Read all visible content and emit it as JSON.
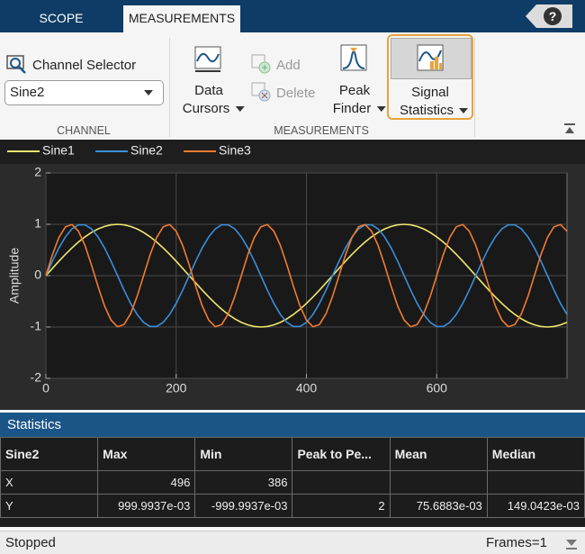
{
  "tabs": [
    "SCOPE",
    "MEASUREMENTS"
  ],
  "help": "?",
  "ribbon": {
    "channel_selector": "Channel Selector",
    "channel": "Sine2",
    "channel_section": "CHANNEL",
    "data_cursors": [
      "Data",
      "Cursors"
    ],
    "add": "Add",
    "delete": "Delete",
    "peak_finder": [
      "Peak",
      "Finder"
    ],
    "signal_statistics": [
      "Signal",
      "Statistics"
    ],
    "measurements_section": "MEASUREMENTS"
  },
  "chart_data": {
    "type": "line",
    "ylabel": "Amplitude",
    "x": [
      0,
      10,
      20,
      30,
      40,
      50,
      60,
      70,
      80,
      90,
      100,
      110,
      120,
      130,
      140,
      150,
      160,
      170,
      180,
      190,
      200,
      210,
      220,
      230,
      240,
      250,
      260,
      270,
      280,
      290,
      300,
      310,
      320,
      330,
      340,
      350,
      360,
      370,
      380,
      390,
      400,
      410,
      420,
      430,
      440,
      450,
      460,
      470,
      480,
      490,
      500,
      510,
      520,
      530,
      540,
      550,
      560,
      570,
      580,
      590,
      600,
      610,
      620,
      630,
      640,
      650,
      660,
      670,
      680,
      690,
      700,
      710,
      720,
      730,
      740,
      750,
      760,
      770,
      780,
      790,
      800
    ],
    "series": [
      {
        "name": "Sine1",
        "color": "#f2e66e",
        "values": [
          0,
          0.142,
          0.282,
          0.415,
          0.541,
          0.655,
          0.756,
          0.841,
          0.91,
          0.959,
          0.99,
          1,
          0.99,
          0.959,
          0.91,
          0.841,
          0.756,
          0.655,
          0.541,
          0.415,
          0.282,
          0.142,
          0,
          -0.142,
          -0.282,
          -0.415,
          -0.541,
          -0.655,
          -0.756,
          -0.841,
          -0.91,
          -0.959,
          -0.99,
          -1,
          -0.99,
          -0.959,
          -0.91,
          -0.841,
          -0.756,
          -0.655,
          -0.541,
          -0.415,
          -0.282,
          -0.142,
          0,
          0.142,
          0.282,
          0.415,
          0.541,
          0.655,
          0.756,
          0.841,
          0.91,
          0.959,
          0.99,
          1,
          0.99,
          0.959,
          0.91,
          0.841,
          0.756,
          0.655,
          0.541,
          0.415,
          0.282,
          0.142,
          0,
          -0.142,
          -0.282,
          -0.415,
          -0.541,
          -0.655,
          -0.756,
          -0.841,
          -0.91,
          -0.959,
          -0.99,
          -1,
          -0.99,
          -0.959,
          -0.91
        ]
      },
      {
        "name": "Sine2",
        "color": "#3b8fdb",
        "values": [
          0,
          0.282,
          0.541,
          0.756,
          0.91,
          0.99,
          0.99,
          0.91,
          0.756,
          0.541,
          0.282,
          0,
          -0.282,
          -0.541,
          -0.756,
          -0.91,
          -0.99,
          -0.99,
          -0.91,
          -0.756,
          -0.541,
          -0.282,
          0,
          0.282,
          0.541,
          0.756,
          0.91,
          0.99,
          0.99,
          0.91,
          0.756,
          0.541,
          0.282,
          0,
          -0.282,
          -0.541,
          -0.756,
          -0.91,
          -0.99,
          -0.99,
          -0.91,
          -0.756,
          -0.541,
          -0.282,
          0,
          0.282,
          0.541,
          0.756,
          0.91,
          0.99,
          0.99,
          0.91,
          0.756,
          0.541,
          0.282,
          0,
          -0.282,
          -0.541,
          -0.756,
          -0.91,
          -0.99,
          -0.99,
          -0.91,
          -0.756,
          -0.541,
          -0.282,
          0,
          0.282,
          0.541,
          0.756,
          0.91,
          0.99,
          0.99,
          0.91,
          0.756,
          0.541,
          0.282,
          0,
          -0.282,
          -0.541,
          -0.756
        ]
      },
      {
        "name": "Sine3",
        "color": "#f07b32",
        "values": [
          0,
          0.407,
          0.743,
          0.951,
          0.995,
          0.866,
          0.588,
          0.208,
          -0.208,
          -0.588,
          -0.866,
          -0.995,
          -0.951,
          -0.743,
          -0.407,
          0,
          0.407,
          0.743,
          0.951,
          0.995,
          0.866,
          0.588,
          0.208,
          -0.208,
          -0.588,
          -0.866,
          -0.995,
          -0.951,
          -0.743,
          -0.407,
          0,
          0.407,
          0.743,
          0.951,
          0.995,
          0.866,
          0.588,
          0.208,
          -0.208,
          -0.588,
          -0.866,
          -0.995,
          -0.951,
          -0.743,
          -0.407,
          0,
          0.407,
          0.743,
          0.951,
          0.995,
          0.866,
          0.588,
          0.208,
          -0.208,
          -0.588,
          -0.866,
          -0.995,
          -0.951,
          -0.743,
          -0.407,
          0,
          0.407,
          0.743,
          0.951,
          0.995,
          0.866,
          0.588,
          0.208,
          -0.208,
          -0.588,
          -0.866,
          -0.995,
          -0.951,
          -0.743,
          -0.407,
          0,
          0.407,
          0.743,
          0.951,
          0.995,
          0.866
        ]
      }
    ],
    "xlim": [
      0,
      800
    ],
    "ylim": [
      -2,
      2
    ],
    "xticks": [
      0,
      200,
      400,
      600
    ],
    "yticks": [
      -2,
      -1,
      0,
      1,
      2
    ],
    "grid": true,
    "legend": "top"
  },
  "statistics": {
    "title": "Statistics",
    "columns": [
      "Sine2",
      "Max",
      "Min",
      "Peak to Pe...",
      "Mean",
      "Median"
    ],
    "rows": [
      [
        "X",
        "496",
        "386"
      ],
      [
        "Y",
        "999.9937e-03",
        "-999.9937e-03",
        "2",
        "75.6883e-03",
        "149.0423e-03"
      ]
    ]
  },
  "status": {
    "state": "Stopped",
    "frames": "Frames=1"
  }
}
